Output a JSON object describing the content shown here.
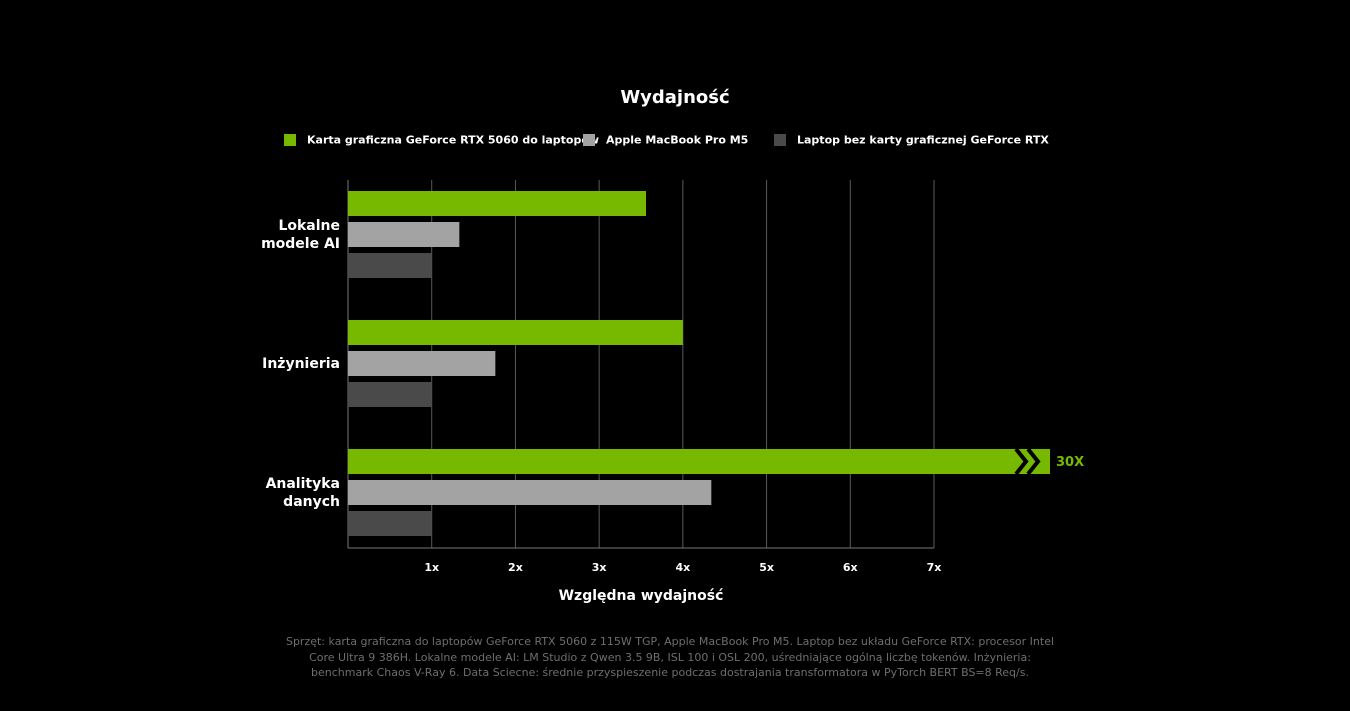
{
  "chart_data": {
    "type": "hbar",
    "title": "Wydajność",
    "categories": [
      "Lokalne modele AI",
      "Inżynieria",
      "Analityka danych"
    ],
    "series": [
      {
        "name": "Karta graficzna GeForce RTX 5060 do laptopów",
        "color": "#76b900",
        "values": [
          3.56,
          4.0,
          30
        ],
        "value_labels": [
          null,
          null,
          "30X"
        ]
      },
      {
        "name": "Apple MacBook Pro M5",
        "color": "#a3a3a3",
        "values": [
          1.33,
          1.76,
          4.34
        ]
      },
      {
        "name": "Laptop bez karty graficznej GeForce RTX",
        "color": "#4a4a4a",
        "values": [
          1,
          1,
          1
        ]
      }
    ],
    "xlim": [
      0,
      7
    ],
    "xticks": [
      {
        "value": 1,
        "label": "1x"
      },
      {
        "value": 2,
        "label": "2x"
      },
      {
        "value": 3,
        "label": "3x"
      },
      {
        "value": 4,
        "label": "4x"
      },
      {
        "value": 5,
        "label": "5x"
      },
      {
        "value": 6,
        "label": "6x"
      },
      {
        "value": 7,
        "label": "7x"
      }
    ],
    "xlabel": "Względna wydajność",
    "grid": true,
    "footnote": "Sprzęt: karta graficzna do laptopów GeForce RTX 5060 z 115W TGP, Apple MacBook Pro M5. Laptop bez układu GeForce RTX: procesor Intel Core Ultra 9 386H. Lokalne modele AI: LM Studio z Qwen 3.5 9B, ISL 100 i OSL 200, uśredniające ogólną liczbę tokenów. Inżynieria: benchmark Chaos V-Ray 6. Data Sciecne: średnie przyspieszenie podczas dostrajania transformatora w PyTorch BERT BS=8 Req/s."
  }
}
